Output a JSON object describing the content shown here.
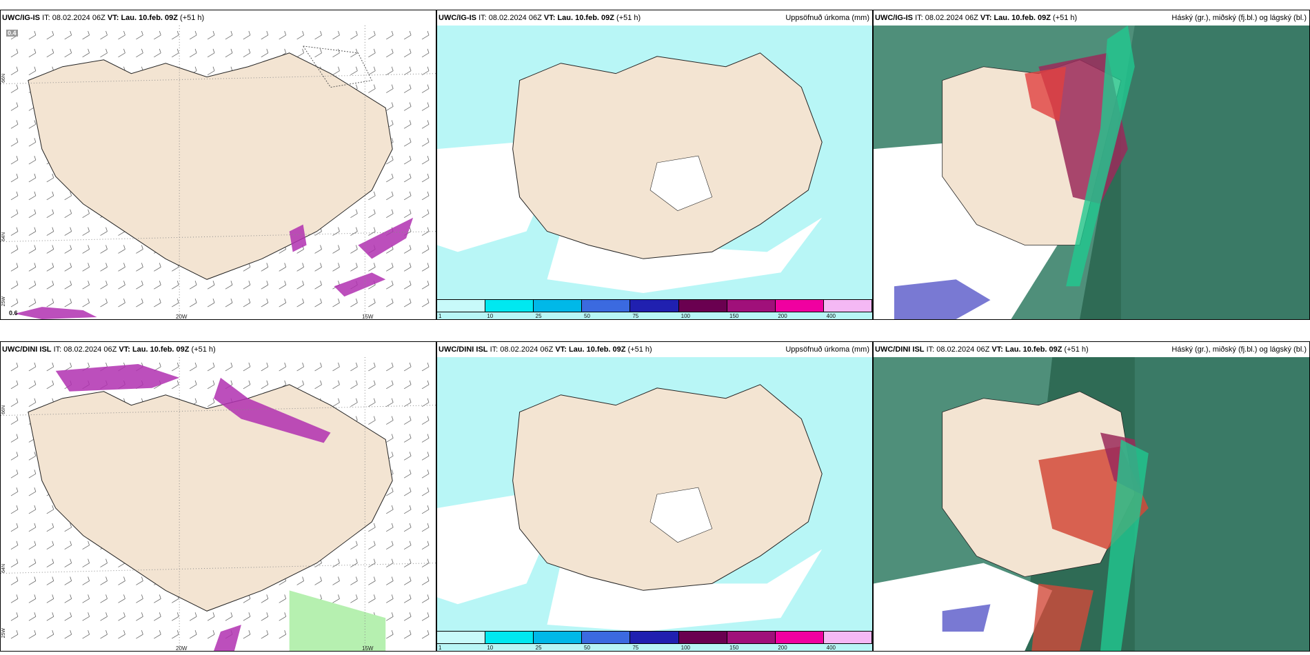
{
  "panels": [
    {
      "model": "UWC/IG-IS",
      "it_label": "IT:",
      "it": "08.02.2024 06Z",
      "vt_label": "VT:",
      "vt": "Lau. 10.feb. 09Z",
      "lead": "(+51 h)",
      "right": ""
    },
    {
      "model": "UWC/IG-IS",
      "it_label": "IT:",
      "it": "08.02.2024 06Z",
      "vt_label": "VT:",
      "vt": "Lau. 10.feb. 09Z",
      "lead": "(+51 h)",
      "right": "Uppsöfnuð úrkoma (mm)"
    },
    {
      "model": "UWC/IG-IS",
      "it_label": "IT:",
      "it": "08.02.2024 06Z",
      "vt_label": "VT:",
      "vt": "Lau. 10.feb. 09Z",
      "lead": "(+51 h)",
      "right": "Háský (gr.), miðský (fj.bl.) og lágský (bl.)"
    },
    {
      "model": "UWC/DINI ISL",
      "it_label": "IT:",
      "it": "08.02.2024 06Z",
      "vt_label": "VT:",
      "vt": "Lau. 10.feb. 09Z",
      "lead": "(+51 h)",
      "right": ""
    },
    {
      "model": "UWC/DINI ISL",
      "it_label": "IT:",
      "it": "08.02.2024 06Z",
      "vt_label": "VT:",
      "vt": "Lau. 10.feb. 09Z",
      "lead": "(+51 h)",
      "right": "Uppsöfnuð úrkoma (mm)"
    },
    {
      "model": "UWC/DINI ISL",
      "it_label": "IT:",
      "it": "08.02.2024 06Z",
      "vt_label": "VT:",
      "vt": "Lau. 10.feb. 09Z",
      "lead": "(+51 h)",
      "right": "Háský (gr.), miðský (fj.bl.) og lágský (bl.)"
    }
  ],
  "axes": {
    "lon": [
      "20W",
      "15W"
    ],
    "lat": [
      "66N",
      "64N",
      "25W"
    ]
  },
  "precip_values": {
    "p0": "0.4",
    "p1": "0.6"
  },
  "colorbar": {
    "labels": [
      "1",
      "10",
      "25",
      "50",
      "75",
      "100",
      "150",
      "200",
      "400"
    ],
    "colors": [
      "#c8fafa",
      "#00e8f0",
      "#00b8e8",
      "#3b6ae0",
      "#2020b0",
      "#6a0050",
      "#a0107a",
      "#f000a0",
      "#f4b8f4"
    ]
  },
  "colors": {
    "land": "#f3e4d2",
    "sea_light": "#b8f6f6",
    "wind": "#555555"
  }
}
